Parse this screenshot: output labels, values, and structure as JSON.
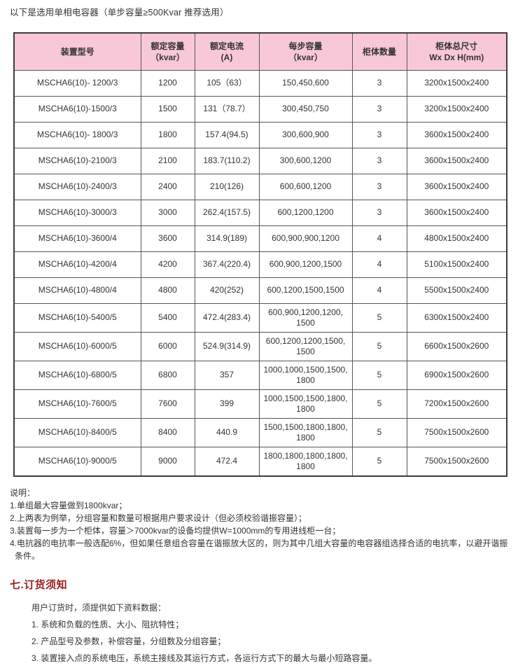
{
  "intro": {
    "title": "以下是选用单相电容器（单步容量≥500Kvar 推荐选用）"
  },
  "table": {
    "headers": [
      "装置型号",
      "额定容量\n（kvar）",
      "额定电流\n(A)",
      "每步容量\n（kvar）",
      "柜体数量",
      "柜体总尺寸\nWx Dx H(mm)"
    ],
    "rows": [
      [
        "MSCHA6(10)- 1200/3",
        "1200",
        "105（63）",
        "150,450,600",
        "3",
        "3200x1500x2400"
      ],
      [
        "MSCHA6(10)-1500/3",
        "1500",
        "131（78.7）",
        "300,450,750",
        "3",
        "3200x1500x2400"
      ],
      [
        "MSCHA6(10)- 1800/3",
        "1800",
        "157.4(94.5)",
        "300,600,900",
        "3",
        "3600x1500x2400"
      ],
      [
        "MSCHA6(10)-2100/3",
        "2100",
        "183.7(110.2)",
        "300,600,1200",
        "3",
        "3600x1500x2400"
      ],
      [
        "MSCHA6(10)-2400/3",
        "2400",
        "210(126)",
        "600,600,1200",
        "3",
        "3600x1500x2400"
      ],
      [
        "MSCHA6(10)-3000/3",
        "3000",
        "262.4(157.5)",
        "600,1200,1200",
        "3",
        "3600x1500x2400"
      ],
      [
        "MSCHA6(10)-3600/4",
        "3600",
        "314.9(189)",
        "600,900,900,1200",
        "4",
        "4800x1500x2400"
      ],
      [
        "MSCHA6(10)-4200/4",
        "4200",
        "367.4(220.4)",
        "600,900,1200,1500",
        "4",
        "5100x1500x2400"
      ],
      [
        "MSCHA6(10)-4800/4",
        "4800",
        "420(252)",
        "600,1200,1500,1500",
        "4",
        "5500x1500x2400"
      ],
      [
        "MSCHA6(10)-5400/5",
        "5400",
        "472.4(283.4)",
        "600,900,1200,1200,\n1500",
        "5",
        "6300x1500x2400"
      ],
      [
        "MSCHA6(10)-6000/5",
        "6000",
        "524.9(314.9)",
        "600,1200,1200,1500,\n1500",
        "5",
        "6600x1500x2600"
      ],
      [
        "MSCHA6(10)-6800/5",
        "6800",
        "357",
        "1000,1000,1500,1500,\n1800",
        "5",
        "6900x1500x2600"
      ],
      [
        "MSCHA6(10)-7600/5",
        "7600",
        "399",
        "1000,1500,1500,1800,\n1800",
        "5",
        "7200x1500x2600"
      ],
      [
        "MSCHA6(10)-8400/5",
        "8400",
        "440.9",
        "1500,1500,1800,1800,\n1800",
        "5",
        "7500x1500x2600"
      ],
      [
        "MSCHA6(10)-9000/5",
        "9000",
        "472.4",
        "1800,1800,1800,1800,\n1800",
        "5",
        "7500x1500x2600"
      ]
    ]
  },
  "notes": {
    "heading": "说明：",
    "items": [
      "1.单组最大容量做到1800kvar；",
      "2.上两表为例举，分组容量和数量可根据用户要求设计（但必须校验谐振容量）；",
      "3.装置每一步为一个柜体，容量＞7000kvar的设备均提供W=1000mm的专用进线柜一台；",
      "4.电抗器的电抗率一般选配6%，但如果任意组合容量在谐振放大区的，则为其中几组大容量的电容器组选择合适的电抗率，以避开谐振条件。"
    ]
  },
  "ordering": {
    "heading": "七.订货须知",
    "intro": "用户订货时，须提供如下资料数据：",
    "items": [
      "1.  系统和负载的性质、大小、阻抗特性；",
      "2.  产品型号及参数，补偿容量，分组数及分组容量；",
      "3.  装置接入点的系统电压，系统主接线及其运行方式，各运行方式下的最大与最小短路容量。"
    ]
  },
  "colors": {
    "header_pink": "#f9c8d8",
    "accent_red": "#9e1b1e",
    "border_dark": "#3c3c3c",
    "border_inner": "#565656",
    "text": "#333333"
  }
}
